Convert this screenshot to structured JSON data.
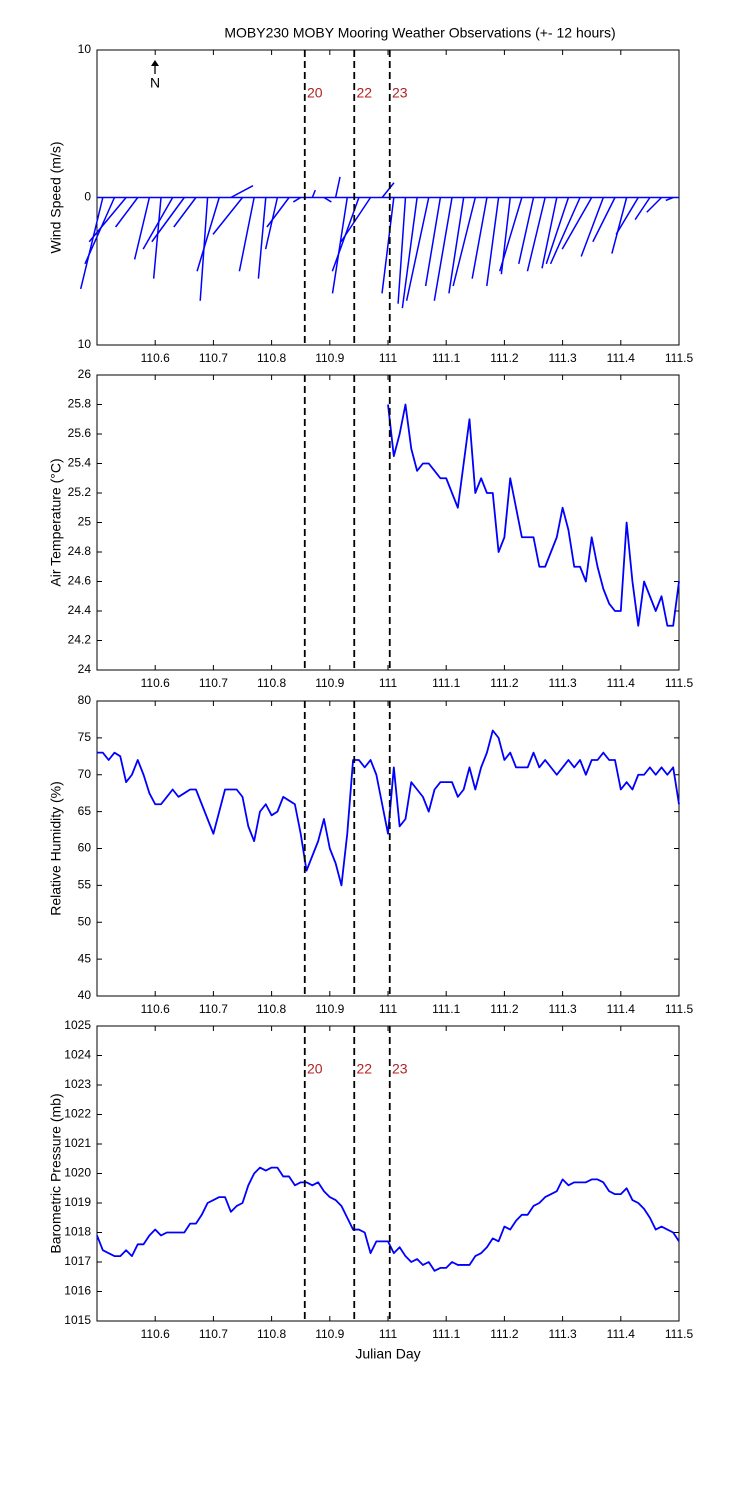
{
  "chart_data": [
    {
      "type": "stick",
      "title": "MOBY230 MOBY Mooring Weather Observations (+- 12 hours)",
      "ylabel": "Wind Speed (m/s)",
      "north_label": "N",
      "color": "#0000ff",
      "xlim": [
        110.5,
        111.5
      ],
      "xticks": [
        110.6,
        110.7,
        110.8,
        110.9,
        111,
        111.1,
        111.2,
        111.3,
        111.4,
        111.5
      ],
      "ylim": [
        -10,
        10
      ],
      "yticks": [
        {
          "value": -10,
          "label": "10"
        },
        0,
        10
      ],
      "vlines": [
        110.857,
        110.942,
        111.003
      ],
      "vline_labels": [
        "20",
        "22",
        "23"
      ],
      "x": [
        110.51,
        110.53,
        110.55,
        110.57,
        110.59,
        110.61,
        110.63,
        110.65,
        110.67,
        110.69,
        110.71,
        110.73,
        110.75,
        110.77,
        110.79,
        110.81,
        110.83,
        110.85,
        110.87,
        110.89,
        110.91,
        110.93,
        110.95,
        110.97,
        110.99,
        111.01,
        111.03,
        111.05,
        111.07,
        111.09,
        111.11,
        111.13,
        111.15,
        111.17,
        111.19,
        111.21,
        111.23,
        111.25,
        111.27,
        111.29,
        111.31,
        111.33,
        111.35,
        111.37,
        111.39,
        111.41,
        111.43,
        111.45,
        111.47,
        111.49
      ],
      "u": [
        -1.5,
        -2,
        -2.5,
        -1.5,
        -1,
        -0.5,
        -2,
        -2.2,
        -1.5,
        -0.5,
        -1.5,
        1.5,
        -2,
        -1,
        -0.5,
        -0.8,
        -1.5,
        -0.5,
        0.2,
        0.5,
        0.3,
        -1,
        -1.8,
        -2,
        0.8,
        -0.8,
        -0.5,
        -1,
        -1.5,
        -1,
        -1.2,
        -1,
        -1.5,
        -1,
        -0.8,
        -0.6,
        -1.5,
        -1,
        -1.2,
        -1,
        -1.5,
        -2,
        -2,
        -1.5,
        -1.5,
        -1,
        -1.5,
        -1,
        -1,
        -0.5
      ],
      "v": [
        -6.2,
        -4.5,
        -3,
        -2,
        -4.2,
        -5.5,
        -3.5,
        -3,
        -2,
        -7,
        -5,
        0.8,
        -2.5,
        -5,
        -5.5,
        -3.5,
        -2,
        -0.3,
        0.5,
        -0.3,
        1.4,
        -6.5,
        -5,
        -3,
        1,
        -6.5,
        -7.2,
        -7.5,
        -7,
        -6,
        -7,
        -6.5,
        -6,
        -5.5,
        -6,
        -5.2,
        -5,
        -4.5,
        -5,
        -4.8,
        -4.5,
        -4.5,
        -3.5,
        -4,
        -3,
        -3.8,
        -2.5,
        -1.5,
        -1,
        -0.2
      ]
    },
    {
      "type": "line",
      "ylabel": "Air Temperature (°C)",
      "color": "#0000ff",
      "xlim": [
        110.5,
        111.5
      ],
      "xticks": [
        110.6,
        110.7,
        110.8,
        110.9,
        111,
        111.1,
        111.2,
        111.3,
        111.4,
        111.5
      ],
      "ylim": [
        24,
        26
      ],
      "yticks": [
        24,
        24.2,
        24.4,
        24.6,
        24.8,
        25,
        25.2,
        25.4,
        25.6,
        25.8,
        26
      ],
      "vlines": [
        110.857,
        110.942,
        111.003
      ],
      "x": [
        111.0,
        111.01,
        111.02,
        111.03,
        111.04,
        111.05,
        111.06,
        111.07,
        111.08,
        111.09,
        111.1,
        111.11,
        111.12,
        111.13,
        111.14,
        111.15,
        111.16,
        111.17,
        111.18,
        111.19,
        111.2,
        111.21,
        111.22,
        111.23,
        111.24,
        111.25,
        111.26,
        111.27,
        111.28,
        111.29,
        111.3,
        111.31,
        111.32,
        111.33,
        111.34,
        111.35,
        111.36,
        111.37,
        111.38,
        111.39,
        111.4,
        111.41,
        111.42,
        111.43,
        111.44,
        111.45,
        111.46,
        111.47,
        111.48,
        111.49,
        111.5
      ],
      "values": [
        25.8,
        25.45,
        25.6,
        25.8,
        25.5,
        25.35,
        25.4,
        25.4,
        25.35,
        25.3,
        25.3,
        25.2,
        25.1,
        25.4,
        25.7,
        25.2,
        25.3,
        25.2,
        25.2,
        24.8,
        24.9,
        25.3,
        25.1,
        24.9,
        24.9,
        24.9,
        24.7,
        24.7,
        24.8,
        24.9,
        25.1,
        24.95,
        24.7,
        24.7,
        24.6,
        24.9,
        24.7,
        24.55,
        24.45,
        24.4,
        24.4,
        25.0,
        24.6,
        24.3,
        24.6,
        24.5,
        24.4,
        24.5,
        24.3,
        24.3,
        24.6
      ]
    },
    {
      "type": "line",
      "ylabel": "Relative Humidity (%)",
      "color": "#0000ff",
      "xlim": [
        110.5,
        111.5
      ],
      "xticks": [
        110.6,
        110.7,
        110.8,
        110.9,
        111,
        111.1,
        111.2,
        111.3,
        111.4,
        111.5
      ],
      "ylim": [
        40,
        80
      ],
      "yticks": [
        40,
        45,
        50,
        55,
        60,
        65,
        70,
        75,
        80
      ],
      "vlines": [
        110.857,
        110.942,
        111.003
      ],
      "x": [
        110.5,
        110.51,
        110.52,
        110.53,
        110.54,
        110.55,
        110.56,
        110.57,
        110.58,
        110.59,
        110.6,
        110.61,
        110.62,
        110.63,
        110.64,
        110.65,
        110.66,
        110.67,
        110.68,
        110.69,
        110.7,
        110.71,
        110.72,
        110.73,
        110.74,
        110.75,
        110.76,
        110.77,
        110.78,
        110.79,
        110.8,
        110.81,
        110.82,
        110.83,
        110.84,
        110.85,
        110.86,
        110.87,
        110.88,
        110.89,
        110.9,
        110.91,
        110.92,
        110.93,
        110.94,
        110.95,
        110.96,
        110.97,
        110.98,
        110.99,
        111.0,
        111.01,
        111.02,
        111.03,
        111.04,
        111.05,
        111.06,
        111.07,
        111.08,
        111.09,
        111.1,
        111.11,
        111.12,
        111.13,
        111.14,
        111.15,
        111.16,
        111.17,
        111.18,
        111.19,
        111.2,
        111.21,
        111.22,
        111.23,
        111.24,
        111.25,
        111.26,
        111.27,
        111.28,
        111.29,
        111.3,
        111.31,
        111.32,
        111.33,
        111.34,
        111.35,
        111.36,
        111.37,
        111.38,
        111.39,
        111.4,
        111.41,
        111.42,
        111.43,
        111.44,
        111.45,
        111.46,
        111.47,
        111.48,
        111.49,
        111.5
      ],
      "values": [
        73,
        73,
        72,
        73,
        72.5,
        69,
        70,
        72,
        70,
        67.5,
        66,
        66,
        67,
        68,
        67,
        67.5,
        68,
        68,
        66,
        64,
        62,
        65,
        68,
        68,
        68,
        67,
        63,
        61,
        65,
        66,
        64.5,
        65,
        67,
        66.5,
        66,
        62,
        57,
        59,
        61,
        64,
        60,
        58,
        55,
        62,
        72,
        72,
        71,
        72,
        70,
        66,
        62,
        71,
        63,
        64,
        69,
        68,
        67,
        65,
        68,
        69,
        69,
        69,
        67,
        68,
        71,
        68,
        71,
        73,
        76,
        75,
        72,
        73,
        71,
        71,
        71,
        73,
        71,
        72,
        71,
        70,
        71,
        72,
        71,
        72,
        70,
        72,
        72,
        73,
        72,
        72,
        68,
        69,
        68,
        70,
        70,
        71,
        70,
        71,
        70,
        71,
        66
      ]
    },
    {
      "type": "line",
      "ylabel": "Barometric Pressure (mb)",
      "xlabel": "Julian Day",
      "color": "#0000ff",
      "xlim": [
        110.5,
        111.5
      ],
      "xticks": [
        110.6,
        110.7,
        110.8,
        110.9,
        111,
        111.1,
        111.2,
        111.3,
        111.4,
        111.5
      ],
      "ylim": [
        1015,
        1025
      ],
      "yticks": [
        1015,
        1016,
        1017,
        1018,
        1019,
        1020,
        1021,
        1022,
        1023,
        1024,
        1025
      ],
      "vlines": [
        110.857,
        110.942,
        111.003
      ],
      "vline_labels": [
        "20",
        "22",
        "23"
      ],
      "x": [
        110.5,
        110.51,
        110.52,
        110.53,
        110.54,
        110.55,
        110.56,
        110.57,
        110.58,
        110.59,
        110.6,
        110.61,
        110.62,
        110.63,
        110.64,
        110.65,
        110.66,
        110.67,
        110.68,
        110.69,
        110.7,
        110.71,
        110.72,
        110.73,
        110.74,
        110.75,
        110.76,
        110.77,
        110.78,
        110.79,
        110.8,
        110.81,
        110.82,
        110.83,
        110.84,
        110.85,
        110.86,
        110.87,
        110.88,
        110.89,
        110.9,
        110.91,
        110.92,
        110.93,
        110.94,
        110.95,
        110.96,
        110.97,
        110.98,
        110.99,
        111.0,
        111.01,
        111.02,
        111.03,
        111.04,
        111.05,
        111.06,
        111.07,
        111.08,
        111.09,
        111.1,
        111.11,
        111.12,
        111.13,
        111.14,
        111.15,
        111.16,
        111.17,
        111.18,
        111.19,
        111.2,
        111.21,
        111.22,
        111.23,
        111.24,
        111.25,
        111.26,
        111.27,
        111.28,
        111.29,
        111.3,
        111.31,
        111.32,
        111.33,
        111.34,
        111.35,
        111.36,
        111.37,
        111.38,
        111.39,
        111.4,
        111.41,
        111.42,
        111.43,
        111.44,
        111.45,
        111.46,
        111.47,
        111.48,
        111.49,
        111.5
      ],
      "values": [
        1017.9,
        1017.4,
        1017.3,
        1017.2,
        1017.2,
        1017.4,
        1017.2,
        1017.6,
        1017.6,
        1017.9,
        1018.1,
        1017.9,
        1018.0,
        1018.0,
        1018.0,
        1018.0,
        1018.3,
        1018.3,
        1018.6,
        1019.0,
        1019.1,
        1019.2,
        1019.2,
        1018.7,
        1018.9,
        1019.0,
        1019.6,
        1020.0,
        1020.2,
        1020.1,
        1020.2,
        1020.2,
        1019.9,
        1019.9,
        1019.6,
        1019.7,
        1019.7,
        1019.6,
        1019.7,
        1019.4,
        1019.2,
        1019.1,
        1018.9,
        1018.5,
        1018.1,
        1018.1,
        1018.0,
        1017.3,
        1017.7,
        1017.7,
        1017.7,
        1017.3,
        1017.5,
        1017.2,
        1017.0,
        1017.1,
        1016.9,
        1017.0,
        1016.7,
        1016.8,
        1016.8,
        1017.0,
        1016.9,
        1016.9,
        1016.9,
        1017.2,
        1017.3,
        1017.5,
        1017.8,
        1017.7,
        1018.2,
        1018.1,
        1018.4,
        1018.6,
        1018.6,
        1018.9,
        1019.0,
        1019.2,
        1019.3,
        1019.4,
        1019.8,
        1019.6,
        1019.7,
        1019.7,
        1019.7,
        1019.8,
        1019.8,
        1019.7,
        1019.4,
        1019.3,
        1019.3,
        1019.5,
        1019.1,
        1019.0,
        1018.8,
        1018.5,
        1018.1,
        1018.2,
        1018.1,
        1018.0,
        1017.7
      ]
    }
  ]
}
